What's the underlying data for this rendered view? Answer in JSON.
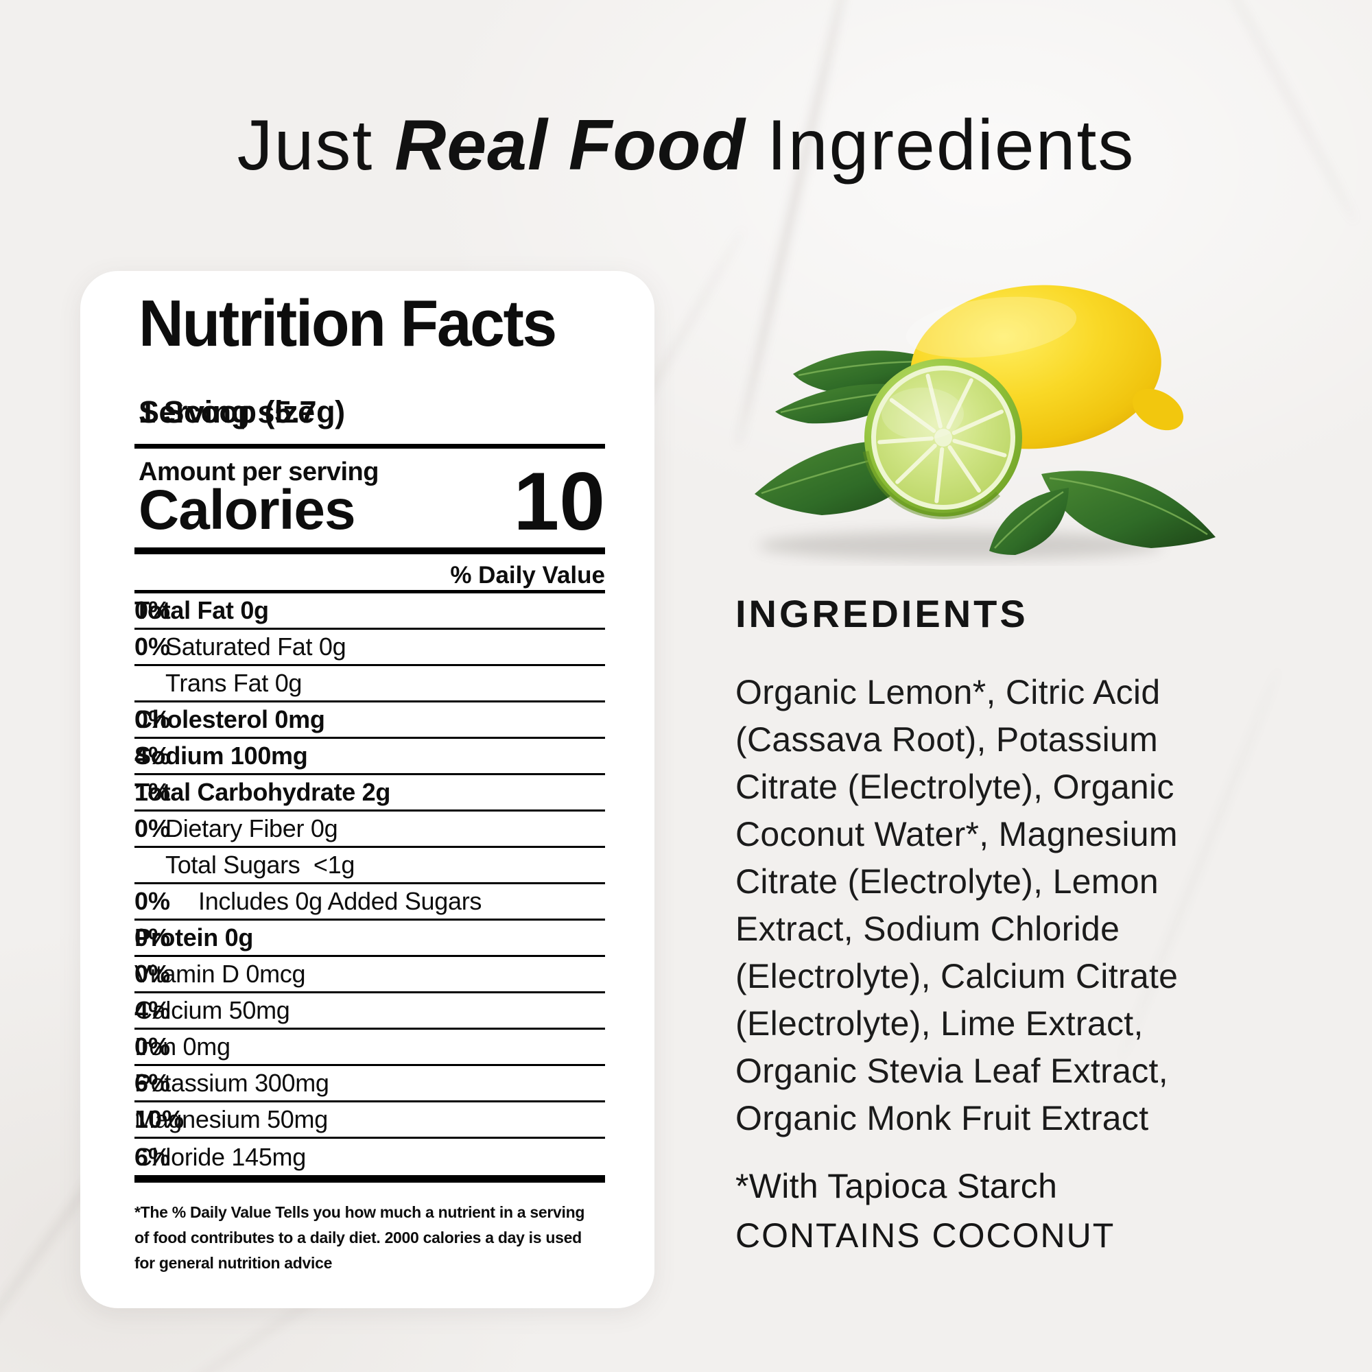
{
  "headline": {
    "prefix": "Just ",
    "emphasis": "Real Food",
    "suffix": " Ingredients"
  },
  "nutrition": {
    "panel_title": "Nutrition Facts",
    "serving_size_label": "Serving size",
    "serving_size_value": "1 Scoop (5.7g)",
    "amount_label": "Amount per serving",
    "calories_label": "Calories",
    "calories_value": "10",
    "daily_value_header": "% Daily Value",
    "rows": [
      {
        "label": "Total Fat 0g",
        "value": "0%",
        "bold": true,
        "indent": 0
      },
      {
        "label": "Saturated Fat 0g",
        "value": "0%",
        "bold": false,
        "indent": 1
      },
      {
        "label": "Trans Fat 0g",
        "value": "",
        "bold": false,
        "indent": 1
      },
      {
        "label": "Cholesterol 0mg",
        "value": "0%",
        "bold": true,
        "indent": 0
      },
      {
        "label": "Sodium 100mg",
        "value": "4%",
        "bold": true,
        "indent": 0
      },
      {
        "label": "Total Carbohydrate 2g",
        "value": "1%",
        "bold": true,
        "indent": 0
      },
      {
        "label": "Dietary Fiber 0g",
        "value": "0%",
        "bold": false,
        "indent": 1
      },
      {
        "label": "Total Sugars  <1g",
        "value": "",
        "bold": false,
        "indent": 1
      },
      {
        "label": "Includes 0g Added Sugars",
        "value": "0%",
        "bold": false,
        "indent": 2
      },
      {
        "label": "Protein 0g",
        "value": "0%",
        "bold": true,
        "indent": 0
      },
      {
        "label": "Vitamin D 0mcg",
        "value": "0%",
        "bold": false,
        "indent": 0
      },
      {
        "label": "Calcium 50mg",
        "value": "4%",
        "bold": false,
        "indent": 0
      },
      {
        "label": "Iron 0mg",
        "value": "0%",
        "bold": false,
        "indent": 0
      },
      {
        "label": "Potassium 300mg",
        "value": "6%",
        "bold": false,
        "indent": 0
      },
      {
        "label": "Magnesium 50mg",
        "value": "10%",
        "bold": false,
        "indent": 0
      },
      {
        "label": "Chloride 145mg",
        "value": "6%",
        "bold": false,
        "indent": 0
      }
    ],
    "footnote": "*The % Daily Value Tells you how much a nutrient in a serving\nof food contributes to a daily diet. 2000 calories a day is used\nfor general nutrition advice"
  },
  "ingredients": {
    "heading": "INGREDIENTS",
    "body": "Organic Lemon*, Citric Acid\n(Cassava Root), Potassium\nCitrate (Electrolyte), Organic\nCoconut Water*, Magnesium\nCitrate (Electrolyte), Lemon\nExtract, Sodium Chloride\n(Electrolyte), Calcium Citrate\n(Electrolyte), Lime Extract,\nOrganic Stevia Leaf Extract,\nOrganic Monk Fruit Extract",
    "note_line1": "*With Tapioca Starch",
    "note_line2": "CONTAINS COCONUT"
  },
  "illustration": {
    "name": "lemon-and-lime-half-with-leaves",
    "lemon_color": "#f8d826",
    "lime_rind_color": "#8abc35",
    "lime_flesh_color": "#cfe484",
    "leaf_color": "#2f6b27"
  },
  "colors": {
    "background": "#f2f0ee",
    "card": "#ffffff",
    "text": "#0d0d0d"
  }
}
